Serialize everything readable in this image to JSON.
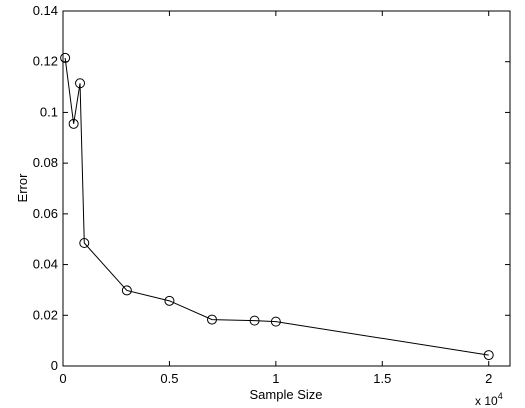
{
  "chart_data": {
    "type": "line",
    "xlabel": "Sample Size",
    "ylabel": "Error",
    "x_multiplier_label": "x 10",
    "x_multiplier_exponent": "4",
    "xlim": [
      0,
      2.1
    ],
    "ylim": [
      0,
      0.14
    ],
    "xticks": [
      0,
      0.5,
      1,
      1.5,
      2
    ],
    "xtick_labels": [
      "0",
      "0.5",
      "1",
      "1.5",
      "2"
    ],
    "yticks": [
      0,
      0.02,
      0.04,
      0.06,
      0.08,
      0.1,
      0.12,
      0.14
    ],
    "ytick_labels": [
      "0",
      "0.02",
      "0.04",
      "0.06",
      "0.08",
      "0.1",
      "0.12",
      "0.14"
    ],
    "grid": false,
    "series": [
      {
        "marker": "circle",
        "color": "#000000",
        "x": [
          0.01,
          0.05,
          0.08,
          0.1,
          0.3,
          0.5,
          0.7,
          0.9,
          1.0,
          2.0
        ],
        "y": [
          0.1215,
          0.0955,
          0.1115,
          0.0485,
          0.0298,
          0.0257,
          0.0183,
          0.0179,
          0.0175,
          0.0043
        ]
      }
    ]
  }
}
